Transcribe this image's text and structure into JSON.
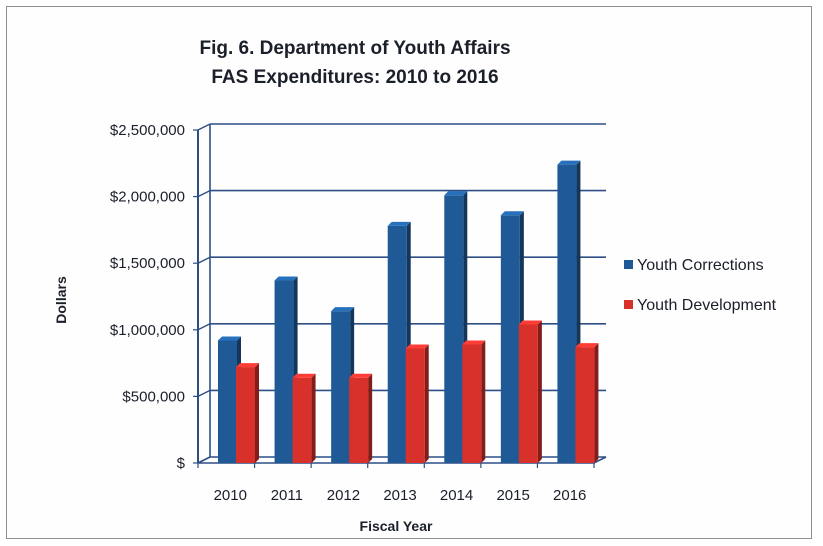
{
  "chart_data": {
    "type": "bar",
    "title": "Fig. 6.  Department of Youth Affairs",
    "subtitle": "FAS Expenditures:  2010 to 2016",
    "xlabel": "Fiscal Year",
    "ylabel": "Dollars",
    "categories": [
      "2010",
      "2011",
      "2012",
      "2013",
      "2014",
      "2015",
      "2016"
    ],
    "series": [
      {
        "name": "Youth Corrections",
        "color": "#1f5a96",
        "values": [
          920000,
          1370000,
          1140000,
          1780000,
          2010000,
          1860000,
          2240000
        ]
      },
      {
        "name": "Youth Development",
        "color": "#d8312b",
        "values": [
          720000,
          640000,
          640000,
          860000,
          890000,
          1040000,
          870000
        ]
      }
    ],
    "y_ticks": [
      {
        "value": 0,
        "label": "$"
      },
      {
        "value": 500000,
        "label": "$500,000"
      },
      {
        "value": 1000000,
        "label": "$1,000,000"
      },
      {
        "value": 1500000,
        "label": "$1,500,000"
      },
      {
        "value": 2000000,
        "label": "$2,000,000"
      },
      {
        "value": 2500000,
        "label": "$2,500,000"
      }
    ],
    "ylim": [
      0,
      2500000
    ],
    "grid": true,
    "legend_position": "right"
  }
}
